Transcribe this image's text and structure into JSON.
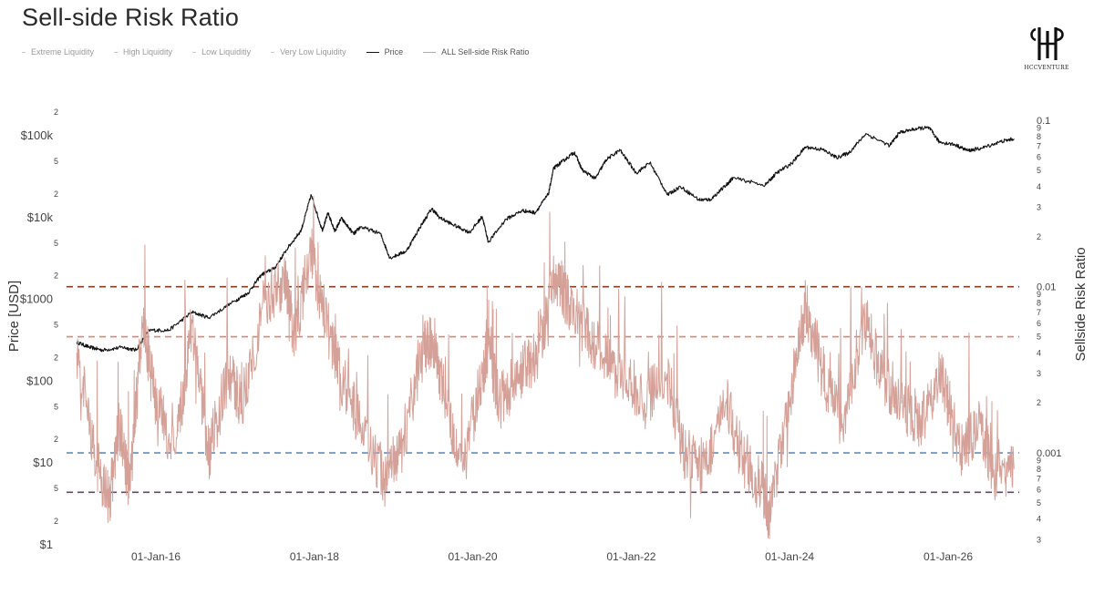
{
  "chart_data": {
    "type": "line",
    "title": "Sell-side Risk Ratio",
    "legend": {
      "placement": "top-left",
      "items": [
        {
          "name": "Extreme Liquidity",
          "kind": "dash",
          "color": "#c9c9c9"
        },
        {
          "name": "High Liquidity",
          "kind": "dash",
          "color": "#c9c9c9"
        },
        {
          "name": "Low Liquiditiy",
          "kind": "dash",
          "color": "#c9c9c9"
        },
        {
          "name": "Very Low Liquidity",
          "kind": "dash",
          "color": "#c9c9c9"
        },
        {
          "name": "Price",
          "kind": "line",
          "color": "#111111"
        },
        {
          "name": "ALL Sell-side Risk Ratio",
          "kind": "line",
          "color": "#d4a097"
        }
      ]
    },
    "x_axis": {
      "label": "",
      "range": [
        "2014-11-15",
        "2026-11-25"
      ],
      "ticks": [
        {
          "date": "2016-01-01",
          "label": "01-Jan-16"
        },
        {
          "date": "2018-01-01",
          "label": "01-Jan-18"
        },
        {
          "date": "2020-01-01",
          "label": "01-Jan-20"
        },
        {
          "date": "2022-01-01",
          "label": "01-Jan-22"
        },
        {
          "date": "2024-01-01",
          "label": "01-Jan-24"
        },
        {
          "date": "2026-01-01",
          "label": "01-Jan-26"
        }
      ]
    },
    "y_left": {
      "label": "Price [USD]",
      "scale": "log",
      "range": [
        1,
        400000
      ],
      "ticks": [
        {
          "v": 1,
          "t": "$1",
          "major": true
        },
        {
          "v": 2,
          "t": "2"
        },
        {
          "v": 5,
          "t": "5"
        },
        {
          "v": 10,
          "t": "$10",
          "major": true
        },
        {
          "v": 20,
          "t": "2"
        },
        {
          "v": 50,
          "t": "5"
        },
        {
          "v": 100,
          "t": "$100",
          "major": true
        },
        {
          "v": 200,
          "t": "2"
        },
        {
          "v": 500,
          "t": "5"
        },
        {
          "v": 1000,
          "t": "$1000",
          "major": true
        },
        {
          "v": 2000,
          "t": "2"
        },
        {
          "v": 5000,
          "t": "5"
        },
        {
          "v": 10000,
          "t": "$10k",
          "major": true
        },
        {
          "v": 20000,
          "t": "2"
        },
        {
          "v": 50000,
          "t": "5"
        },
        {
          "v": 100000,
          "t": "$100k",
          "major": true
        },
        {
          "v": 200000,
          "t": "2"
        }
      ]
    },
    "y_right": {
      "label": "Sellside Risk Ratio",
      "scale": "log",
      "range": [
        0.00028,
        0.16
      ],
      "ticks": [
        {
          "v": 0.0003,
          "t": "3"
        },
        {
          "v": 0.0004,
          "t": "4"
        },
        {
          "v": 0.0005,
          "t": "5"
        },
        {
          "v": 0.0006,
          "t": "6"
        },
        {
          "v": 0.0007,
          "t": "7"
        },
        {
          "v": 0.0008,
          "t": "8"
        },
        {
          "v": 0.0009,
          "t": "9"
        },
        {
          "v": 0.001,
          "t": "0.001",
          "major": true
        },
        {
          "v": 0.002,
          "t": "2"
        },
        {
          "v": 0.003,
          "t": "3"
        },
        {
          "v": 0.004,
          "t": "4"
        },
        {
          "v": 0.005,
          "t": "5"
        },
        {
          "v": 0.006,
          "t": "6"
        },
        {
          "v": 0.007,
          "t": "7"
        },
        {
          "v": 0.008,
          "t": "8"
        },
        {
          "v": 0.009,
          "t": "9"
        },
        {
          "v": 0.01,
          "t": "0.01",
          "major": true
        },
        {
          "v": 0.02,
          "t": "2"
        },
        {
          "v": 0.03,
          "t": "3"
        },
        {
          "v": 0.04,
          "t": "4"
        },
        {
          "v": 0.05,
          "t": "5"
        },
        {
          "v": 0.06,
          "t": "6"
        },
        {
          "v": 0.07,
          "t": "7"
        },
        {
          "v": 0.08,
          "t": "8"
        },
        {
          "v": 0.09,
          "t": "9"
        },
        {
          "v": 0.1,
          "t": "0.1",
          "major": true
        }
      ]
    },
    "thresholds": [
      {
        "name": "Very Low Liquidity",
        "value": 0.01,
        "color": "#8b3a1c"
      },
      {
        "name": "Low Liquiditiy",
        "value": 0.005,
        "color": "#e8806a"
      },
      {
        "name": "High Liquidity",
        "value": 0.001,
        "color": "#5b8ec7"
      },
      {
        "name": "Extreme Liquidity",
        "value": 0.00058,
        "color": "#5e4a63"
      }
    ],
    "grid": false,
    "series": [
      {
        "name": "Price",
        "axis": "left",
        "color": "#111111",
        "points": [
          [
            "2015-01-01",
            300
          ],
          [
            "2015-03-01",
            260
          ],
          [
            "2015-05-01",
            240
          ],
          [
            "2015-08-01",
            260
          ],
          [
            "2015-10-01",
            240
          ],
          [
            "2015-12-01",
            420
          ],
          [
            "2016-03-01",
            420
          ],
          [
            "2016-06-15",
            700
          ],
          [
            "2016-09-01",
            600
          ],
          [
            "2016-12-31",
            960
          ],
          [
            "2017-03-01",
            1200
          ],
          [
            "2017-05-01",
            2000
          ],
          [
            "2017-07-01",
            2400
          ],
          [
            "2017-09-01",
            4300
          ],
          [
            "2017-11-01",
            7000
          ],
          [
            "2017-12-17",
            19000
          ],
          [
            "2018-02-06",
            7000
          ],
          [
            "2018-03-05",
            11400
          ],
          [
            "2018-04-05",
            6800
          ],
          [
            "2018-05-05",
            9800
          ],
          [
            "2018-07-01",
            6300
          ],
          [
            "2018-08-01",
            7700
          ],
          [
            "2018-11-01",
            6400
          ],
          [
            "2018-12-15",
            3200
          ],
          [
            "2019-03-01",
            3900
          ],
          [
            "2019-05-01",
            7500
          ],
          [
            "2019-06-26",
            12900
          ],
          [
            "2019-08-01",
            10000
          ],
          [
            "2019-10-01",
            8200
          ],
          [
            "2019-12-18",
            6600
          ],
          [
            "2020-02-14",
            10300
          ],
          [
            "2020-03-13",
            5000
          ],
          [
            "2020-06-01",
            9500
          ],
          [
            "2020-08-17",
            12200
          ],
          [
            "2020-10-15",
            11500
          ],
          [
            "2020-12-15",
            19400
          ],
          [
            "2021-01-08",
            40000
          ],
          [
            "2021-02-15",
            48000
          ],
          [
            "2021-04-14",
            63000
          ],
          [
            "2021-05-20",
            38000
          ],
          [
            "2021-07-20",
            30000
          ],
          [
            "2021-09-07",
            51000
          ],
          [
            "2021-11-10",
            67000
          ],
          [
            "2022-01-24",
            35000
          ],
          [
            "2022-03-28",
            47000
          ],
          [
            "2022-06-18",
            19000
          ],
          [
            "2022-08-15",
            24000
          ],
          [
            "2022-11-10",
            16500
          ],
          [
            "2023-01-01",
            16600
          ],
          [
            "2023-03-15",
            25000
          ],
          [
            "2023-04-14",
            30500
          ],
          [
            "2023-09-11",
            25000
          ],
          [
            "2023-11-01",
            35000
          ],
          [
            "2024-01-11",
            46000
          ],
          [
            "2024-03-14",
            73000
          ],
          [
            "2024-06-01",
            68000
          ],
          [
            "2024-08-05",
            54000
          ],
          [
            "2024-10-01",
            62000
          ],
          [
            "2024-12-17",
            106000
          ],
          [
            "2025-04-07",
            76000
          ],
          [
            "2025-05-22",
            110000
          ],
          [
            "2025-08-14",
            123000
          ],
          [
            "2025-10-06",
            125000
          ],
          [
            "2025-11-21",
            84000
          ],
          [
            "2026-02-01",
            78000
          ],
          [
            "2026-04-01",
            66000
          ],
          [
            "2026-06-01",
            70000
          ],
          [
            "2026-09-01",
            85000
          ],
          [
            "2026-11-01",
            92000
          ]
        ]
      },
      {
        "name": "ALL Sell-side Risk Ratio",
        "axis": "right",
        "color": "#d4a097",
        "points": [
          [
            "2015-01-01",
            0.004
          ],
          [
            "2015-04-01",
            0.0009
          ],
          [
            "2015-06-01",
            0.0005
          ],
          [
            "2015-07-15",
            0.0015
          ],
          [
            "2015-09-01",
            0.0006
          ],
          [
            "2015-11-01",
            0.006
          ],
          [
            "2016-01-01",
            0.002
          ],
          [
            "2016-04-01",
            0.001
          ],
          [
            "2016-06-15",
            0.006
          ],
          [
            "2016-09-01",
            0.001
          ],
          [
            "2016-12-01",
            0.003
          ],
          [
            "2017-02-01",
            0.002
          ],
          [
            "2017-05-15",
            0.008
          ],
          [
            "2017-08-15",
            0.011
          ],
          [
            "2017-10-01",
            0.005
          ],
          [
            "2017-12-17",
            0.017
          ],
          [
            "2018-02-01",
            0.008
          ],
          [
            "2018-05-01",
            0.003
          ],
          [
            "2018-08-01",
            0.0015
          ],
          [
            "2018-11-20",
            0.0007
          ],
          [
            "2019-02-01",
            0.001
          ],
          [
            "2019-05-15",
            0.004
          ],
          [
            "2019-07-01",
            0.005
          ],
          [
            "2019-09-01",
            0.002
          ],
          [
            "2019-11-15",
            0.0008
          ],
          [
            "2020-02-15",
            0.003
          ],
          [
            "2020-03-15",
            0.0045
          ],
          [
            "2020-05-01",
            0.002
          ],
          [
            "2020-08-01",
            0.003
          ],
          [
            "2020-11-01",
            0.004
          ],
          [
            "2021-01-15",
            0.012
          ],
          [
            "2021-03-15",
            0.008
          ],
          [
            "2021-05-15",
            0.006
          ],
          [
            "2021-08-15",
            0.004
          ],
          [
            "2021-11-01",
            0.003
          ],
          [
            "2022-03-01",
            0.002
          ],
          [
            "2022-06-15",
            0.003
          ],
          [
            "2022-09-01",
            0.001
          ],
          [
            "2022-12-01",
            0.0008
          ],
          [
            "2023-03-15",
            0.002
          ],
          [
            "2023-06-01",
            0.0009
          ],
          [
            "2023-09-01",
            0.0006
          ],
          [
            "2023-10-01",
            0.0004
          ],
          [
            "2024-01-01",
            0.002
          ],
          [
            "2024-03-15",
            0.008
          ],
          [
            "2024-06-01",
            0.003
          ],
          [
            "2024-09-01",
            0.0015
          ],
          [
            "2024-12-10",
            0.0065
          ],
          [
            "2025-03-01",
            0.003
          ],
          [
            "2025-06-01",
            0.002
          ],
          [
            "2025-09-01",
            0.0015
          ],
          [
            "2025-12-01",
            0.003
          ],
          [
            "2026-03-01",
            0.001
          ],
          [
            "2026-06-01",
            0.0015
          ],
          [
            "2026-08-01",
            0.0007
          ],
          [
            "2026-11-01",
            0.0008
          ]
        ]
      }
    ]
  },
  "branding": {
    "logo_text": "HCCVENTURE"
  }
}
